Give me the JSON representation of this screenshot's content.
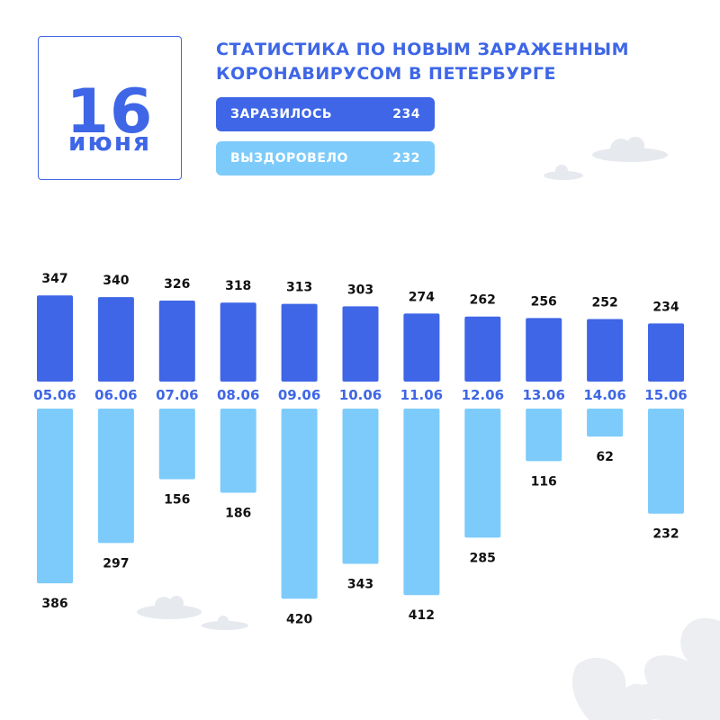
{
  "date": {
    "day": "16",
    "month": "июня"
  },
  "title": "СТАТИСТИКА ПО НОВЫМ ЗАРАЖЕННЫМ КОРОНАВИРУСОМ В ПЕТЕРБУРГЕ",
  "summary": {
    "infected_label": "ЗАРАЗИЛОСЬ",
    "infected_value": "234",
    "recovered_label": "ВЫЗДОРОВЕЛО",
    "recovered_value": "232"
  },
  "colors": {
    "infected": "#3e66e6",
    "recovered": "#7dcbfa",
    "text": "#111111"
  },
  "chart_data": {
    "type": "bar",
    "categories": [
      "05.06",
      "06.06",
      "07.06",
      "08.06",
      "09.06",
      "10.06",
      "11.06",
      "12.06",
      "13.06",
      "14.06",
      "15.06"
    ],
    "series": [
      {
        "name": "ЗАРАЗИЛОСЬ",
        "values": [
          347,
          340,
          326,
          318,
          313,
          303,
          274,
          262,
          256,
          252,
          234
        ]
      },
      {
        "name": "ВЫЗДОРОВЕЛО",
        "values": [
          386,
          297,
          156,
          186,
          420,
          343,
          412,
          285,
          116,
          62,
          232
        ]
      }
    ],
    "title": "",
    "xlabel": "",
    "ylabel": "",
    "grid": false,
    "legend": "none"
  }
}
